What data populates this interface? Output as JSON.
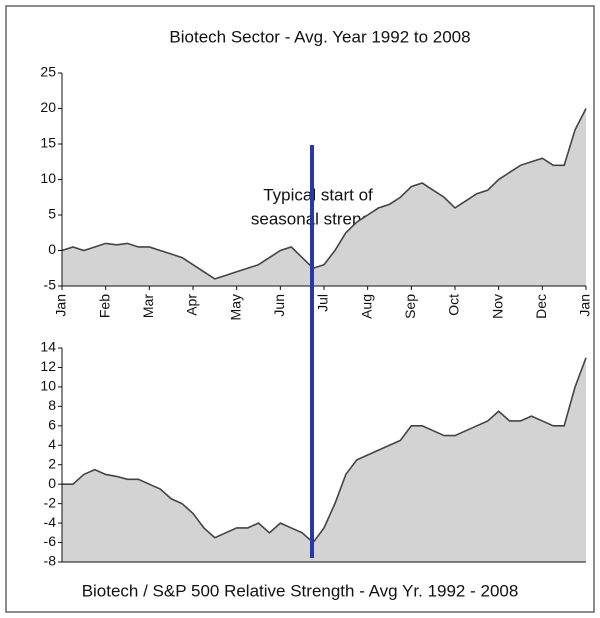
{
  "chart_data": [
    {
      "type": "area",
      "title": "Biotech Sector - Avg. Year 1992 to 2008",
      "annotation": [
        "Typical start of",
        "seasonal strength"
      ],
      "x": [
        0,
        0.25,
        0.5,
        0.75,
        1,
        1.25,
        1.5,
        1.75,
        2,
        2.25,
        2.5,
        2.75,
        3,
        3.25,
        3.5,
        3.75,
        4,
        4.25,
        4.5,
        4.75,
        5,
        5.25,
        5.5,
        5.75,
        6,
        6.25,
        6.5,
        6.75,
        7,
        7.25,
        7.5,
        7.75,
        8,
        8.25,
        8.5,
        8.75,
        9,
        9.25,
        9.5,
        9.75,
        10,
        10.25,
        10.5,
        10.75,
        11,
        11.25,
        11.5,
        11.75,
        12
      ],
      "values": [
        0,
        0.5,
        0,
        0.5,
        1,
        0.8,
        1,
        0.5,
        0.5,
        0,
        -0.5,
        -1,
        -2,
        -3,
        -4,
        -3.5,
        -3,
        -2.5,
        -2,
        -1,
        0,
        0.5,
        -1,
        -2.5,
        -2,
        0,
        2.5,
        4,
        5,
        6,
        6.5,
        7.5,
        9,
        9.5,
        8.5,
        7.5,
        6,
        7,
        8,
        8.5,
        10,
        11,
        12,
        12.5,
        13,
        12,
        12,
        17,
        20
      ],
      "color": "#d3d3d3",
      "line_color": "#444444",
      "xlim": [
        0,
        12
      ],
      "xticks": [
        {
          "value": 0,
          "label": "Jan"
        },
        {
          "value": 1,
          "label": "Feb"
        },
        {
          "value": 2,
          "label": "Mar"
        },
        {
          "value": 3,
          "label": "Apr"
        },
        {
          "value": 4,
          "label": "May"
        },
        {
          "value": 5,
          "label": "Jun"
        },
        {
          "value": 6,
          "label": "Jul"
        },
        {
          "value": 7,
          "label": "Aug"
        },
        {
          "value": 8,
          "label": "Sep"
        },
        {
          "value": 9,
          "label": "Oct"
        },
        {
          "value": 10,
          "label": "Nov"
        },
        {
          "value": 11,
          "label": "Dec"
        },
        {
          "value": 12,
          "label": "Jan"
        }
      ],
      "ylim": [
        -5,
        25
      ],
      "yticks": [
        -5,
        0,
        5,
        10,
        15,
        20,
        25
      ]
    },
    {
      "type": "area",
      "title": "Biotech / S&P 500 Relative Strength - Avg Yr. 1992 - 2008",
      "x": [
        0,
        0.25,
        0.5,
        0.75,
        1,
        1.25,
        1.5,
        1.75,
        2,
        2.25,
        2.5,
        2.75,
        3,
        3.25,
        3.5,
        3.75,
        4,
        4.25,
        4.5,
        4.75,
        5,
        5.25,
        5.5,
        5.75,
        6,
        6.25,
        6.5,
        6.75,
        7,
        7.25,
        7.5,
        7.75,
        8,
        8.25,
        8.5,
        8.75,
        9,
        9.25,
        9.5,
        9.75,
        10,
        10.25,
        10.5,
        10.75,
        11,
        11.25,
        11.5,
        11.75,
        12
      ],
      "values": [
        0,
        0,
        1,
        1.5,
        1,
        0.8,
        0.5,
        0.5,
        0,
        -0.5,
        -1.5,
        -2,
        -3,
        -4.5,
        -5.5,
        -5,
        -4.5,
        -4.5,
        -4,
        -5,
        -4,
        -4.5,
        -5,
        -6,
        -4.5,
        -2,
        1,
        2.5,
        3,
        3.5,
        4,
        4.5,
        6,
        6,
        5.5,
        5,
        5,
        5.5,
        6,
        6.5,
        7.5,
        6.5,
        6.5,
        7,
        6.5,
        6,
        6,
        10,
        13
      ],
      "color": "#d3d3d3",
      "line_color": "#444444",
      "xlim": [
        0,
        12
      ],
      "ylim": [
        -8,
        14
      ],
      "yticks": [
        -8,
        -6,
        -4,
        -2,
        0,
        2,
        4,
        6,
        8,
        10,
        12,
        14
      ]
    }
  ]
}
